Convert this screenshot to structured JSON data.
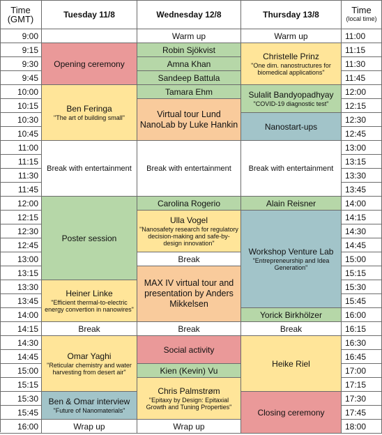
{
  "header": {
    "gmt_title": "Time",
    "gmt_subtitle": "(GMT)",
    "local_title": "Time",
    "local_subtitle": "(local time)",
    "days": [
      "Tuesday 11/8",
      "Wednesday 12/8",
      "Thursday 13/8"
    ]
  },
  "gmt_times": [
    "9:00",
    "9:15",
    "9:30",
    "9:45",
    "10:00",
    "10:15",
    "10:30",
    "10:45",
    "11:00",
    "11:15",
    "11:30",
    "11:45",
    "12:00",
    "12:15",
    "12:30",
    "12:45",
    "13:00",
    "13:15",
    "13:30",
    "13:45",
    "14:00",
    "14:15",
    "14:30",
    "14:45",
    "15:00",
    "15:15",
    "15:30",
    "15:45",
    "16:00"
  ],
  "local_times": [
    "11:00",
    "11:15",
    "11:30",
    "11:45",
    "12:00",
    "12:15",
    "12:30",
    "12:45",
    "13:00",
    "13:15",
    "13:30",
    "13:45",
    "14:00",
    "14:15",
    "14:30",
    "14:45",
    "15:00",
    "15:15",
    "15:30",
    "15:45",
    "16:00",
    "16:15",
    "16:30",
    "16:45",
    "17:00",
    "17:15",
    "17:30",
    "17:45",
    "18:00"
  ],
  "colors": {
    "pink": "#ea9999",
    "yellow": "#ffe599",
    "green": "#b6d7a8",
    "orange": "#f9cb9c",
    "blue": "#a2c4c9",
    "white": "#ffffff"
  },
  "events": [
    {
      "day": 0,
      "start": 0,
      "span": 1,
      "title": "",
      "subtitle": "",
      "color": "white"
    },
    {
      "day": 0,
      "start": 1,
      "span": 3,
      "title": "Opening ceremony",
      "subtitle": "",
      "color": "pink"
    },
    {
      "day": 0,
      "start": 4,
      "span": 4,
      "title": "Ben Feringa",
      "subtitle": "\"The art of building small\"",
      "color": "yellow"
    },
    {
      "day": 0,
      "start": 8,
      "span": 4,
      "title": "Break with entertainment",
      "subtitle": "",
      "color": "white",
      "small": true
    },
    {
      "day": 0,
      "start": 12,
      "span": 6,
      "title": "Poster session",
      "subtitle": "",
      "color": "green"
    },
    {
      "day": 0,
      "start": 18,
      "span": 3,
      "title": "Heiner Linke",
      "subtitle": "\"Efficient thermal-to-electric energy convertion in nanowires\"",
      "color": "yellow"
    },
    {
      "day": 0,
      "start": 21,
      "span": 1,
      "title": "Break",
      "subtitle": "",
      "color": "white"
    },
    {
      "day": 0,
      "start": 22,
      "span": 4,
      "title": "Omar Yaghi",
      "subtitle": "\"Reticular chemistry and water harvesting from desert air\"",
      "color": "yellow"
    },
    {
      "day": 0,
      "start": 26,
      "span": 2,
      "title": "Ben & Omar interview",
      "subtitle": "\"Future of Nanomaterials\"",
      "color": "blue"
    },
    {
      "day": 0,
      "start": 28,
      "span": 1,
      "title": "Wrap up",
      "subtitle": "",
      "color": "white"
    },
    {
      "day": 1,
      "start": 0,
      "span": 1,
      "title": "Warm up",
      "subtitle": "",
      "color": "white"
    },
    {
      "day": 1,
      "start": 1,
      "span": 1,
      "title": "Robin Sjökvist",
      "subtitle": "",
      "color": "green"
    },
    {
      "day": 1,
      "start": 2,
      "span": 1,
      "title": "Amna Khan",
      "subtitle": "",
      "color": "green"
    },
    {
      "day": 1,
      "start": 3,
      "span": 1,
      "title": "Sandeep Battula",
      "subtitle": "",
      "color": "green"
    },
    {
      "day": 1,
      "start": 4,
      "span": 1,
      "title": "Tamara Ehm",
      "subtitle": "",
      "color": "green"
    },
    {
      "day": 1,
      "start": 5,
      "span": 3,
      "title": "Virtual tour Lund NanoLab by Luke Hankin",
      "subtitle": "",
      "color": "orange",
      "big": true
    },
    {
      "day": 1,
      "start": 8,
      "span": 4,
      "title": "Break with entertainment",
      "subtitle": "",
      "color": "white",
      "small": true
    },
    {
      "day": 1,
      "start": 12,
      "span": 1,
      "title": "Carolina Rogerio",
      "subtitle": "",
      "color": "green"
    },
    {
      "day": 1,
      "start": 13,
      "span": 3,
      "title": "Ulla Vogel",
      "subtitle": "\"Nanosafety research for regulatory decision-making and safe-by-design innovation\"",
      "color": "yellow"
    },
    {
      "day": 1,
      "start": 16,
      "span": 1,
      "title": "Break",
      "subtitle": "",
      "color": "white"
    },
    {
      "day": 1,
      "start": 17,
      "span": 4,
      "title": "MAX IV virtual tour and presentation by Anders Mikkelsen",
      "subtitle": "",
      "color": "orange",
      "big": true
    },
    {
      "day": 1,
      "start": 21,
      "span": 1,
      "title": "Break",
      "subtitle": "",
      "color": "white"
    },
    {
      "day": 1,
      "start": 22,
      "span": 2,
      "title": "Social activity",
      "subtitle": "",
      "color": "pink"
    },
    {
      "day": 1,
      "start": 24,
      "span": 1,
      "title": "Kien (Kevin) Vu",
      "subtitle": "",
      "color": "green"
    },
    {
      "day": 1,
      "start": 25,
      "span": 3,
      "title": "Chris Palmstrøm",
      "subtitle": "\"Epitaxy by Design: Epitaxial Growth and Tuning Properties\"",
      "color": "yellow"
    },
    {
      "day": 1,
      "start": 28,
      "span": 1,
      "title": "Wrap up",
      "subtitle": "",
      "color": "white"
    },
    {
      "day": 2,
      "start": 0,
      "span": 1,
      "title": "Warm up",
      "subtitle": "",
      "color": "white"
    },
    {
      "day": 2,
      "start": 1,
      "span": 3,
      "title": "Christelle Prinz",
      "subtitle": "\"One dim. nanostructures for biomedical applications\"",
      "color": "yellow"
    },
    {
      "day": 2,
      "start": 4,
      "span": 2,
      "title": "Sulalit Bandyopadhyay",
      "subtitle": "\"COVID-19 diagnostic test\"",
      "color": "green"
    },
    {
      "day": 2,
      "start": 6,
      "span": 2,
      "title": "Nanostart-ups",
      "subtitle": "",
      "color": "blue"
    },
    {
      "day": 2,
      "start": 8,
      "span": 4,
      "title": "Break with entertainment",
      "subtitle": "",
      "color": "white",
      "small": true
    },
    {
      "day": 2,
      "start": 12,
      "span": 1,
      "title": "Alain Reisner",
      "subtitle": "",
      "color": "green"
    },
    {
      "day": 2,
      "start": 13,
      "span": 7,
      "title": "Workshop Venture Lab",
      "subtitle": "\"Entrepreneurship and Idea Generation\"",
      "color": "blue"
    },
    {
      "day": 2,
      "start": 20,
      "span": 1,
      "title": "Yorick Birkhölzer",
      "subtitle": "",
      "color": "green"
    },
    {
      "day": 2,
      "start": 21,
      "span": 1,
      "title": "Break",
      "subtitle": "",
      "color": "white"
    },
    {
      "day": 2,
      "start": 22,
      "span": 4,
      "title": "Heike Riel",
      "subtitle": "",
      "color": "yellow"
    },
    {
      "day": 2,
      "start": 26,
      "span": 3,
      "title": "Closing ceremony",
      "subtitle": "",
      "color": "pink"
    }
  ]
}
